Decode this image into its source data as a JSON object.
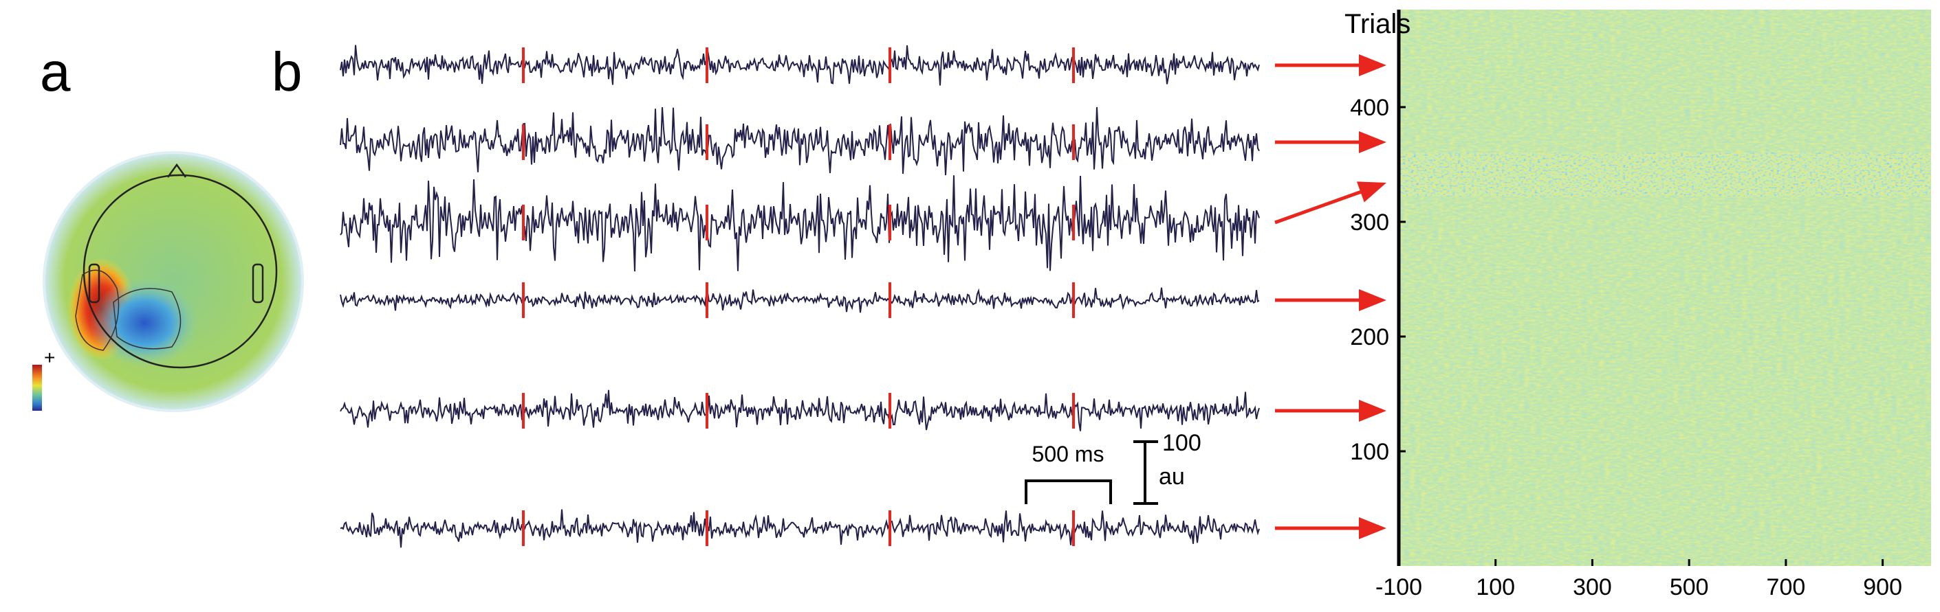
{
  "panel_a": {
    "label": "a",
    "colorbar_label": "+"
  },
  "panel_b": {
    "label": "b",
    "time_scale": "500 ms",
    "amp_scale_value": "100",
    "amp_scale_unit": "au"
  },
  "trials_image": {
    "title": "Trials",
    "ylim": [
      0,
      485
    ],
    "yticks": [
      100,
      200,
      300,
      400
    ],
    "xlim": [
      -100,
      1000
    ],
    "xticks": [
      -100,
      100,
      300,
      500,
      700,
      900
    ]
  }
}
